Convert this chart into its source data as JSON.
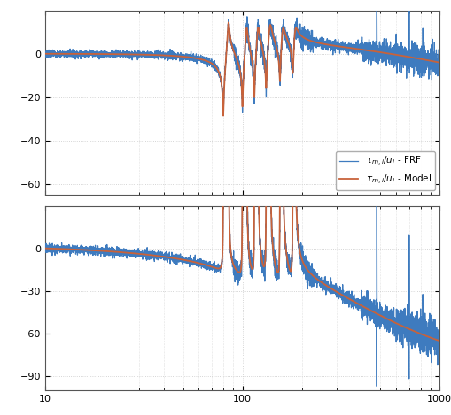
{
  "fig_bg": "#ffffff",
  "axes_bg": "#ffffff",
  "grid_color": "#c8c8c8",
  "frf_color": "#3e7bbf",
  "model_color": "#c8623a",
  "frf_label": "$\\tau_{m,i}/u_i$ - FRF",
  "model_label": "$\\tau_{m,i}/u_i$ - Model",
  "freq_min": 10,
  "freq_max": 1000,
  "legend_edge": "#aaaaaa",
  "legend_face": "#ffffff"
}
